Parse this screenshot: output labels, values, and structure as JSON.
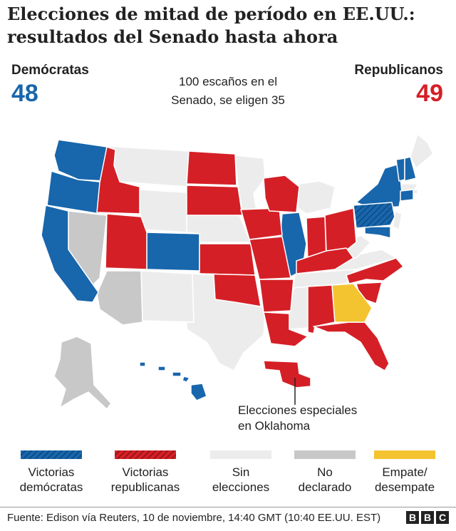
{
  "title_line1": "Elecciones de mitad de período en EE.UU.:",
  "title_line2": "resultados del Senado hasta ahora",
  "democrats": {
    "label": "Demócratas",
    "count": "48",
    "color": "#1866ac"
  },
  "republicans": {
    "label": "Republicanos",
    "count": "49",
    "color": "#d51f26"
  },
  "center_note": {
    "line1": "100 escaños en el",
    "line2": "Senado, se eligen 35"
  },
  "oklahoma_note": {
    "line1": "Elecciones especiales",
    "line2": "en Oklahoma"
  },
  "legend": [
    {
      "line1": "Victorias",
      "line2": "demócratas",
      "color": "#1866ac",
      "pattern": "hatched"
    },
    {
      "line1": "Victorias",
      "line2": "republicanas",
      "color": "#d51f26",
      "pattern": "hatched"
    },
    {
      "line1": "Sin",
      "line2": "elecciones",
      "color": "#ececec",
      "pattern": "solid"
    },
    {
      "line1": "No",
      "line2": "declarado",
      "color": "#c8c8c8",
      "pattern": "solid"
    },
    {
      "line1": "Empate/",
      "line2": "desempate",
      "color": "#f4c430",
      "pattern": "solid"
    }
  ],
  "source": "Fuente: Edison vía Reuters, 10 de noviembre, 14:40 GMT (10:40 EE.UU. EST)",
  "brand_letters": [
    "B",
    "B",
    "C"
  ],
  "map_states": {
    "democrat": [
      "WA",
      "OR",
      "CA",
      "CO",
      "IL",
      "NY",
      "VT",
      "NH",
      "CT",
      "MD",
      "PA"
    ],
    "republican": [
      "ID",
      "UT",
      "ND",
      "SD",
      "KS",
      "OK",
      "MO",
      "AR",
      "LA",
      "IA",
      "WI",
      "IN",
      "OH",
      "KY",
      "NC",
      "SC",
      "AL",
      "FL"
    ],
    "undeclared": [
      "NV",
      "AZ",
      "AK"
    ],
    "runoff": [
      "GA"
    ]
  }
}
